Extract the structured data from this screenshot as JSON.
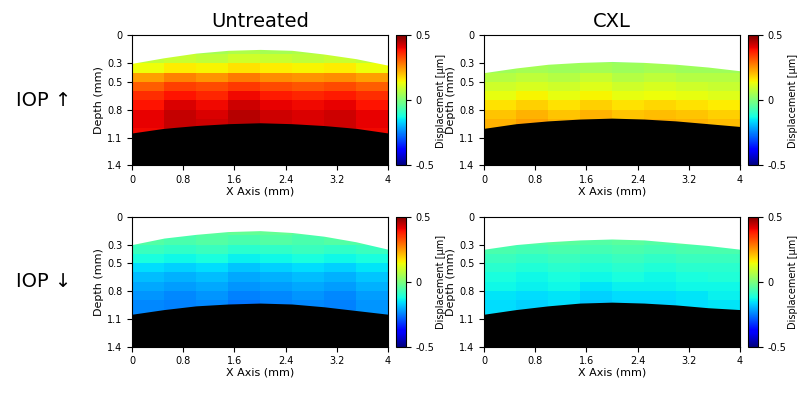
{
  "chart_data": [
    {
      "type": "heatmap",
      "title": "Untreated",
      "annotations": [
        "IOP ↑"
      ],
      "xlabel": "X Axis (mm)",
      "ylabel": "Depth (mm)",
      "xlim": [
        0,
        4
      ],
      "ylim": [
        1.4,
        0
      ],
      "xticks": [
        0,
        0.8,
        1.6,
        2.4,
        3.2,
        4
      ],
      "yticks": [
        0,
        0.3,
        0.5,
        0.8,
        1.1,
        1.4
      ],
      "x_edges": [
        0,
        0.5,
        1,
        1.5,
        2,
        2.5,
        3,
        3.5,
        4
      ],
      "y_edges": [
        0.1,
        0.2,
        0.3,
        0.4,
        0.5,
        0.6,
        0.7,
        0.8,
        0.9,
        1.0,
        1.1
      ],
      "cells": [
        [
          0.05,
          0.06,
          0.05,
          0.06,
          0.05,
          0.06,
          0.05,
          0.05
        ],
        [
          0.08,
          0.09,
          0.08,
          0.1,
          0.09,
          0.08,
          0.09,
          0.08
        ],
        [
          0.14,
          0.16,
          0.15,
          0.17,
          0.16,
          0.15,
          0.16,
          0.14
        ],
        [
          0.24,
          0.27,
          0.25,
          0.28,
          0.26,
          0.25,
          0.26,
          0.24
        ],
        [
          0.31,
          0.34,
          0.33,
          0.35,
          0.33,
          0.32,
          0.33,
          0.31
        ],
        [
          0.36,
          0.39,
          0.37,
          0.4,
          0.38,
          0.37,
          0.38,
          0.36
        ],
        [
          0.39,
          0.42,
          0.4,
          0.43,
          0.41,
          0.4,
          0.41,
          0.39
        ],
        [
          0.41,
          0.44,
          0.42,
          0.45,
          0.43,
          0.42,
          0.43,
          0.41
        ],
        [
          0.41,
          0.44,
          0.43,
          0.45,
          0.43,
          0.42,
          0.43,
          0.41
        ],
        [
          0.4,
          0.42,
          0.41,
          0.43,
          0.42,
          0.41,
          0.41,
          0.4
        ]
      ],
      "surface_x": [
        0,
        0.5,
        1,
        1.5,
        2,
        2.5,
        3,
        3.5,
        4
      ],
      "anterior_surface": [
        0.3,
        0.24,
        0.19,
        0.16,
        0.15,
        0.16,
        0.2,
        0.25,
        0.32
      ],
      "posterior_surface": [
        1.05,
        1.0,
        0.97,
        0.95,
        0.94,
        0.95,
        0.97,
        1.0,
        1.05
      ],
      "colorbar": {
        "label": "Displacement [μm]",
        "range": [
          -0.5,
          0.5
        ],
        "ticks": [
          -0.5,
          0,
          0.5
        ]
      }
    },
    {
      "type": "heatmap",
      "title": "CXL",
      "xlabel": "X Axis (mm)",
      "ylabel": "Depth (mm)",
      "xlim": [
        0,
        4
      ],
      "ylim": [
        1.4,
        0
      ],
      "xticks": [
        0,
        0.8,
        1.6,
        2.4,
        3.2,
        4
      ],
      "yticks": [
        0,
        0.3,
        0.5,
        0.8,
        1.1,
        1.4
      ],
      "x_edges": [
        0,
        0.5,
        1,
        1.5,
        2,
        2.5,
        3,
        3.5,
        4
      ],
      "y_edges": [
        0.1,
        0.2,
        0.3,
        0.4,
        0.5,
        0.6,
        0.7,
        0.8,
        0.9,
        1.0,
        1.1
      ],
      "cells": [
        [
          0.0,
          0.01,
          0.0,
          0.01,
          0.0,
          0.01,
          0.0,
          0.0
        ],
        [
          0.02,
          0.03,
          0.02,
          0.03,
          0.02,
          0.03,
          0.02,
          0.02
        ],
        [
          0.04,
          0.05,
          0.04,
          0.05,
          0.04,
          0.05,
          0.04,
          0.04
        ],
        [
          0.07,
          0.08,
          0.07,
          0.09,
          0.07,
          0.08,
          0.07,
          0.07
        ],
        [
          0.1,
          0.11,
          0.1,
          0.12,
          0.1,
          0.11,
          0.1,
          0.09
        ],
        [
          0.13,
          0.15,
          0.13,
          0.15,
          0.13,
          0.14,
          0.13,
          0.12
        ],
        [
          0.17,
          0.19,
          0.17,
          0.19,
          0.17,
          0.18,
          0.17,
          0.16
        ],
        [
          0.2,
          0.22,
          0.2,
          0.22,
          0.2,
          0.21,
          0.2,
          0.19
        ],
        [
          0.22,
          0.24,
          0.22,
          0.23,
          0.22,
          0.23,
          0.22,
          0.21
        ],
        [
          0.22,
          0.23,
          0.22,
          0.23,
          0.22,
          0.22,
          0.22,
          0.21
        ]
      ],
      "surface_x": [
        0,
        0.5,
        1,
        1.5,
        2,
        2.5,
        3,
        3.5,
        4
      ],
      "anterior_surface": [
        0.4,
        0.35,
        0.31,
        0.29,
        0.28,
        0.29,
        0.31,
        0.34,
        0.38
      ],
      "posterior_surface": [
        1.0,
        0.95,
        0.92,
        0.9,
        0.89,
        0.9,
        0.92,
        0.95,
        0.98
      ],
      "colorbar": {
        "label": "Displacement [μm]",
        "range": [
          -0.5,
          0.5
        ],
        "ticks": [
          -0.5,
          0,
          0.5
        ]
      }
    },
    {
      "type": "heatmap",
      "annotations": [
        "IOP ↓"
      ],
      "xlabel": "X Axis (mm)",
      "ylabel": "Depth (mm)",
      "xlim": [
        0,
        4
      ],
      "ylim": [
        1.4,
        0
      ],
      "xticks": [
        0,
        0.8,
        1.6,
        2.4,
        3.2,
        4
      ],
      "yticks": [
        0,
        0.3,
        0.5,
        0.8,
        1.1,
        1.4
      ],
      "x_edges": [
        0,
        0.5,
        1,
        1.5,
        2,
        2.5,
        3,
        3.5,
        4
      ],
      "y_edges": [
        0.1,
        0.2,
        0.3,
        0.4,
        0.5,
        0.6,
        0.7,
        0.8,
        0.9,
        1.0,
        1.1
      ],
      "cells": [
        [
          -0.03,
          -0.03,
          -0.04,
          -0.03,
          -0.03,
          -0.04,
          -0.03,
          -0.03
        ],
        [
          -0.05,
          -0.06,
          -0.05,
          -0.06,
          -0.05,
          -0.06,
          -0.05,
          -0.05
        ],
        [
          -0.08,
          -0.09,
          -0.08,
          -0.1,
          -0.09,
          -0.08,
          -0.09,
          -0.08
        ],
        [
          -0.12,
          -0.13,
          -0.12,
          -0.14,
          -0.13,
          -0.12,
          -0.13,
          -0.12
        ],
        [
          -0.16,
          -0.17,
          -0.16,
          -0.18,
          -0.17,
          -0.16,
          -0.17,
          -0.15
        ],
        [
          -0.19,
          -0.2,
          -0.19,
          -0.21,
          -0.2,
          -0.19,
          -0.2,
          -0.18
        ],
        [
          -0.21,
          -0.22,
          -0.21,
          -0.23,
          -0.22,
          -0.21,
          -0.22,
          -0.2
        ],
        [
          -0.23,
          -0.24,
          -0.23,
          -0.25,
          -0.24,
          -0.23,
          -0.24,
          -0.22
        ],
        [
          -0.24,
          -0.25,
          -0.24,
          -0.26,
          -0.25,
          -0.24,
          -0.25,
          -0.23
        ],
        [
          -0.24,
          -0.25,
          -0.24,
          -0.25,
          -0.25,
          -0.24,
          -0.24,
          -0.23
        ]
      ],
      "surface_x": [
        0,
        0.5,
        1,
        1.5,
        2,
        2.5,
        3,
        3.5,
        4
      ],
      "anterior_surface": [
        0.3,
        0.23,
        0.19,
        0.16,
        0.15,
        0.17,
        0.21,
        0.27,
        0.35
      ],
      "posterior_surface": [
        1.05,
        1.0,
        0.96,
        0.94,
        0.93,
        0.94,
        0.97,
        1.01,
        1.05
      ],
      "colorbar": {
        "label": "Displacement [μm]",
        "range": [
          -0.5,
          0.5
        ],
        "ticks": [
          -0.5,
          0,
          0.5
        ]
      }
    },
    {
      "type": "heatmap",
      "xlabel": "X Axis (mm)",
      "ylabel": "Depth (mm)",
      "xlim": [
        0,
        4
      ],
      "ylim": [
        1.4,
        0
      ],
      "xticks": [
        0,
        0.8,
        1.6,
        2.4,
        3.2,
        4
      ],
      "yticks": [
        0,
        0.3,
        0.5,
        0.8,
        1.1,
        1.4
      ],
      "x_edges": [
        0,
        0.5,
        1,
        1.5,
        2,
        2.5,
        3,
        3.5,
        4
      ],
      "y_edges": [
        0.1,
        0.2,
        0.3,
        0.4,
        0.5,
        0.6,
        0.7,
        0.8,
        0.9,
        1.0,
        1.1
      ],
      "cells": [
        [
          -0.03,
          -0.03,
          -0.03,
          -0.04,
          -0.03,
          -0.03,
          -0.03,
          -0.03
        ],
        [
          -0.04,
          -0.05,
          -0.04,
          -0.05,
          -0.04,
          -0.05,
          -0.04,
          -0.04
        ],
        [
          -0.06,
          -0.07,
          -0.06,
          -0.07,
          -0.06,
          -0.07,
          -0.06,
          -0.06
        ],
        [
          -0.08,
          -0.09,
          -0.08,
          -0.09,
          -0.08,
          -0.09,
          -0.08,
          -0.08
        ],
        [
          -0.1,
          -0.11,
          -0.1,
          -0.11,
          -0.1,
          -0.11,
          -0.1,
          -0.1
        ],
        [
          -0.12,
          -0.13,
          -0.12,
          -0.13,
          -0.12,
          -0.13,
          -0.12,
          -0.11
        ],
        [
          -0.13,
          -0.14,
          -0.13,
          -0.15,
          -0.14,
          -0.14,
          -0.13,
          -0.13
        ],
        [
          -0.15,
          -0.16,
          -0.15,
          -0.17,
          -0.16,
          -0.16,
          -0.15,
          -0.14
        ],
        [
          -0.16,
          -0.17,
          -0.16,
          -0.18,
          -0.17,
          -0.17,
          -0.16,
          -0.15
        ],
        [
          -0.16,
          -0.17,
          -0.16,
          -0.17,
          -0.17,
          -0.16,
          -0.16,
          -0.15
        ]
      ],
      "surface_x": [
        0,
        0.5,
        1,
        1.5,
        2,
        2.5,
        3,
        3.5,
        4
      ],
      "anterior_surface": [
        0.35,
        0.3,
        0.27,
        0.25,
        0.24,
        0.25,
        0.28,
        0.31,
        0.35
      ],
      "posterior_surface": [
        1.05,
        1.0,
        0.96,
        0.93,
        0.92,
        0.93,
        0.95,
        0.98,
        1.0
      ],
      "colorbar": {
        "label": "Displacement [μm]",
        "range": [
          -0.5,
          0.5
        ],
        "ticks": [
          -0.5,
          0,
          0.5
        ]
      }
    }
  ]
}
